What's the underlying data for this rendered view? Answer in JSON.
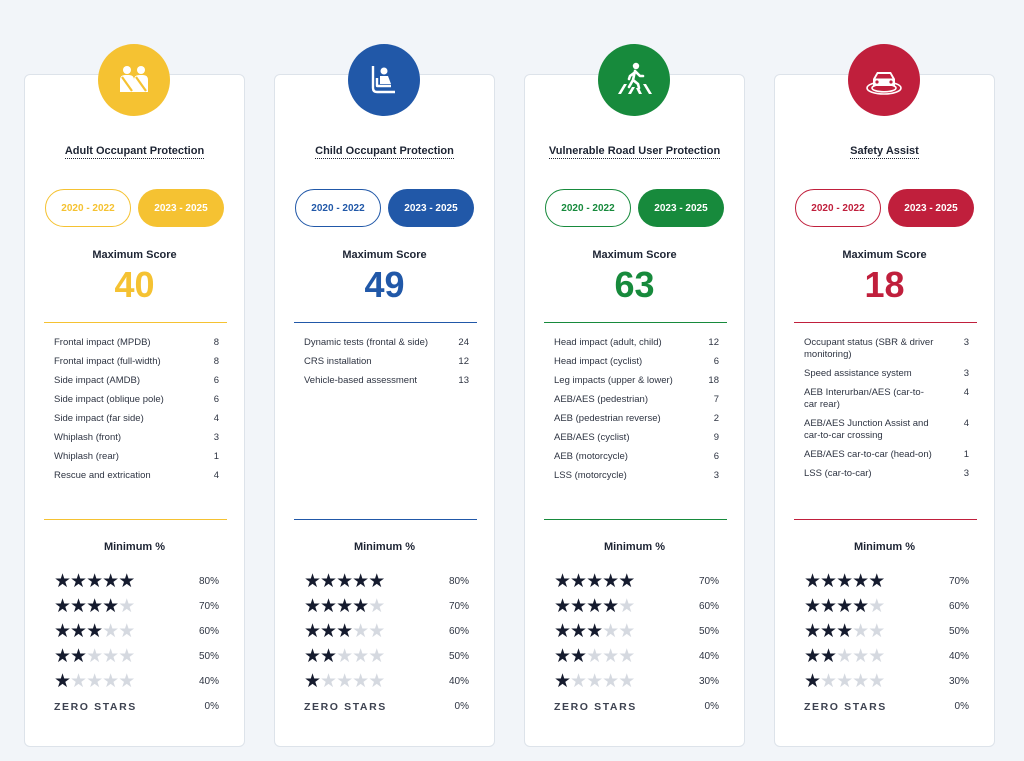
{
  "cards": [
    {
      "title": "Adult Occupant Protection",
      "icon": "adult-occupants-icon",
      "color": "#f5c232",
      "toggle_left": "2020 - 2022",
      "toggle_right": "2023 - 2025",
      "max_label": "Maximum Score",
      "max_score": "40",
      "items": [
        {
          "name": "Frontal impact (MPDB)",
          "score": "8"
        },
        {
          "name": "Frontal impact (full-width)",
          "score": "8"
        },
        {
          "name": "Side impact (AMDB)",
          "score": "6"
        },
        {
          "name": "Side impact (oblique pole)",
          "score": "6"
        },
        {
          "name": "Side impact (far side)",
          "score": "4"
        },
        {
          "name": "Whiplash (front)",
          "score": "3"
        },
        {
          "name": "Whiplash (rear)",
          "score": "1"
        },
        {
          "name": "Rescue and extrication",
          "score": "4"
        }
      ],
      "min_label": "Minimum %",
      "star_thresholds": [
        {
          "stars": 5,
          "pct": "80%"
        },
        {
          "stars": 4,
          "pct": "70%"
        },
        {
          "stars": 3,
          "pct": "60%"
        },
        {
          "stars": 2,
          "pct": "50%"
        },
        {
          "stars": 1,
          "pct": "40%"
        },
        {
          "stars": 0,
          "label": "ZERO STARS",
          "pct": "0%"
        }
      ]
    },
    {
      "title": "Child Occupant Protection",
      "icon": "child-seat-icon",
      "color": "#2158a8",
      "toggle_left": "2020 - 2022",
      "toggle_right": "2023 - 2025",
      "max_label": "Maximum Score",
      "max_score": "49",
      "items": [
        {
          "name": "Dynamic tests (frontal & side)",
          "score": "24"
        },
        {
          "name": "CRS installation",
          "score": "12"
        },
        {
          "name": "Vehicle-based assessment",
          "score": "13"
        }
      ],
      "min_label": "Minimum %",
      "star_thresholds": [
        {
          "stars": 5,
          "pct": "80%"
        },
        {
          "stars": 4,
          "pct": "70%"
        },
        {
          "stars": 3,
          "pct": "60%"
        },
        {
          "stars": 2,
          "pct": "50%"
        },
        {
          "stars": 1,
          "pct": "40%"
        },
        {
          "stars": 0,
          "label": "ZERO STARS",
          "pct": "0%"
        }
      ]
    },
    {
      "title": "Vulnerable Road User Protection",
      "icon": "pedestrian-crossing-icon",
      "color": "#178a3c",
      "toggle_left": "2020 - 2022",
      "toggle_right": "2023 - 2025",
      "max_label": "Maximum Score",
      "max_score": "63",
      "items": [
        {
          "name": "Head impact (adult, child)",
          "score": "12"
        },
        {
          "name": "Head impact (cyclist)",
          "score": "6"
        },
        {
          "name": "Leg impacts (upper & lower)",
          "score": "18"
        },
        {
          "name": "AEB/AES (pedestrian)",
          "score": "7"
        },
        {
          "name": "AEB (pedestrian reverse)",
          "score": "2"
        },
        {
          "name": "AEB/AES (cyclist)",
          "score": "9"
        },
        {
          "name": "AEB (motorcycle)",
          "score": "6"
        },
        {
          "name": "LSS (motorcycle)",
          "score": "3"
        }
      ],
      "min_label": "Minimum %",
      "star_thresholds": [
        {
          "stars": 5,
          "pct": "70%"
        },
        {
          "stars": 4,
          "pct": "60%"
        },
        {
          "stars": 3,
          "pct": "50%"
        },
        {
          "stars": 2,
          "pct": "40%"
        },
        {
          "stars": 1,
          "pct": "30%"
        },
        {
          "stars": 0,
          "label": "ZERO STARS",
          "pct": "0%"
        }
      ]
    },
    {
      "title": "Safety Assist",
      "icon": "car-sensor-icon",
      "color": "#c01f3c",
      "toggle_left": "2020 - 2022",
      "toggle_right": "2023 - 2025",
      "max_label": "Maximum Score",
      "max_score": "18",
      "items": [
        {
          "name": "Occupant status (SBR & driver monitoring)",
          "score": "3"
        },
        {
          "name": "Speed assistance system",
          "score": "3"
        },
        {
          "name": "AEB Interurban/AES (car-to-car rear)",
          "score": "4"
        },
        {
          "name": "AEB/AES Junction Assist and car-to-car crossing",
          "score": "4"
        },
        {
          "name": "AEB/AES car-to-car (head-on)",
          "score": "1"
        },
        {
          "name": "LSS (car-to-car)",
          "score": "3"
        }
      ],
      "min_label": "Minimum %",
      "star_thresholds": [
        {
          "stars": 5,
          "pct": "70%"
        },
        {
          "stars": 4,
          "pct": "60%"
        },
        {
          "stars": 3,
          "pct": "50%"
        },
        {
          "stars": 2,
          "pct": "40%"
        },
        {
          "stars": 1,
          "pct": "30%"
        },
        {
          "stars": 0,
          "label": "ZERO STARS",
          "pct": "0%"
        }
      ]
    }
  ]
}
